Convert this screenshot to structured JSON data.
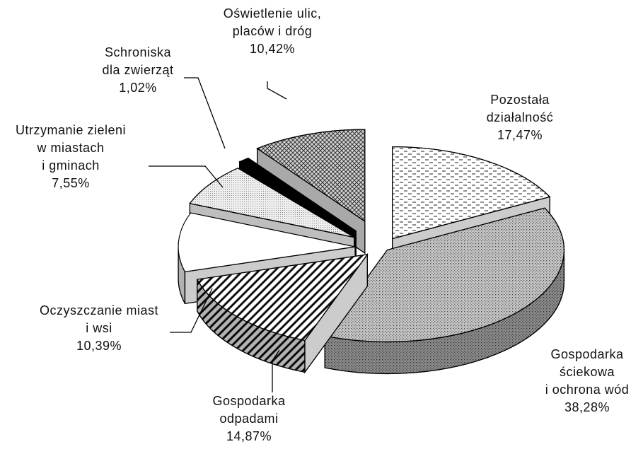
{
  "chart_data": {
    "type": "pie3d",
    "categories": [
      [
        "Pozostała",
        "działalność"
      ],
      [
        "Gospodarka",
        "ściekowa",
        "i ochrona wód"
      ],
      [
        "Gospodarka",
        "odpadami"
      ],
      [
        "Oczyszczanie miast",
        "i wsi"
      ],
      [
        "Utrzymanie zieleni",
        "w miastach",
        "i gminach"
      ],
      [
        "Schroniska",
        "dla zwierząt"
      ],
      [
        "Oświetlenie ulic,",
        "placów i dróg"
      ]
    ],
    "values": [
      17.47,
      38.28,
      14.87,
      10.39,
      7.55,
      1.02,
      10.42
    ],
    "value_labels": [
      "17,47%",
      "38,28%",
      "14,87%",
      "10,39%",
      "7,55%",
      "1,02%",
      "10,42%"
    ],
    "colors": [
      "#ffffff",
      "#c8c8c8",
      "#ffffff",
      "#ffffff",
      "#eeeeee",
      "#000000",
      "#d4d4d4"
    ]
  }
}
